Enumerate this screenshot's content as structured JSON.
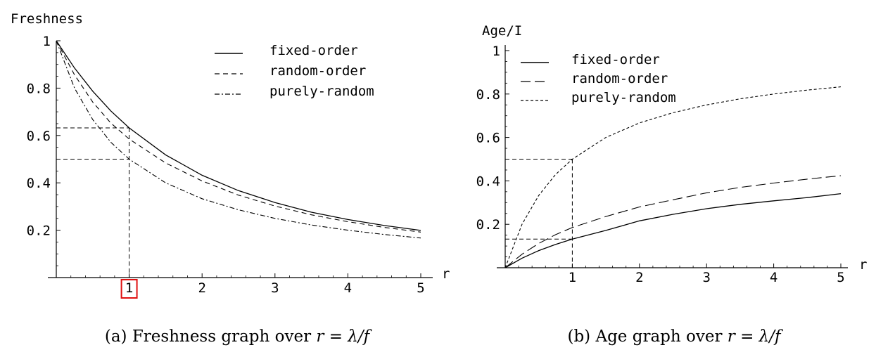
{
  "chart_data": [
    {
      "id": "freshness",
      "type": "line",
      "ylabel": "Freshness",
      "xlabel": "r",
      "caption": {
        "prefix": "(a) Freshness graph over ",
        "math": "r = λ/f"
      },
      "xlim": [
        0,
        5
      ],
      "ylim": [
        0,
        1
      ],
      "xticks": [
        1,
        2,
        3,
        4,
        5
      ],
      "yticks": [
        0.2,
        0.4,
        0.6,
        0.8,
        1
      ],
      "ytick_labels": [
        "0.2",
        "0.4",
        "0.6",
        "0.8",
        "1"
      ],
      "highlighted_xtick": 1,
      "legend_position": "top-right",
      "series": [
        {
          "name": "fixed-order",
          "dash": "solid",
          "x": [
            0,
            0.25,
            0.5,
            0.75,
            1,
            1.5,
            2,
            2.5,
            3,
            3.5,
            4,
            4.5,
            5
          ],
          "y": [
            1,
            0.885,
            0.787,
            0.703,
            0.632,
            0.518,
            0.432,
            0.367,
            0.317,
            0.276,
            0.245,
            0.22,
            0.199
          ]
        },
        {
          "name": "random-order",
          "dash": "dashed",
          "x": [
            0,
            0.25,
            0.5,
            0.75,
            1,
            1.5,
            2,
            2.5,
            3,
            3.5,
            4,
            4.5,
            5
          ],
          "y": [
            1,
            0.856,
            0.741,
            0.652,
            0.585,
            0.484,
            0.408,
            0.348,
            0.302,
            0.265,
            0.236,
            0.212,
            0.192
          ]
        },
        {
          "name": "purely-random",
          "dash": "dash-dot",
          "x": [
            0,
            0.25,
            0.5,
            0.75,
            1,
            1.5,
            2,
            2.5,
            3,
            3.5,
            4,
            4.5,
            5
          ],
          "y": [
            1,
            0.8,
            0.667,
            0.571,
            0.5,
            0.4,
            0.333,
            0.286,
            0.25,
            0.222,
            0.2,
            0.182,
            0.167
          ]
        }
      ],
      "reference_lines": {
        "x": 1,
        "y": [
          0.632,
          0.5
        ]
      }
    },
    {
      "id": "age",
      "type": "line",
      "ylabel": "Age/I",
      "xlabel": "r",
      "caption": {
        "prefix": "(b) Age graph over ",
        "math": "r = λ/f"
      },
      "xlim": [
        0,
        5
      ],
      "ylim": [
        0,
        1
      ],
      "xticks": [
        1,
        2,
        3,
        4,
        5
      ],
      "yticks": [
        0.2,
        0.4,
        0.6,
        0.8,
        1
      ],
      "ytick_labels": [
        "0.2",
        "0.4",
        "0.6",
        "0.8",
        "1"
      ],
      "legend_position": "top-left",
      "series": [
        {
          "name": "fixed-order",
          "dash": "solid",
          "x": [
            0,
            0.25,
            0.5,
            0.75,
            1,
            1.5,
            2,
            2.5,
            3,
            3.5,
            4,
            4.5,
            5
          ],
          "y": [
            0,
            0.044,
            0.079,
            0.107,
            0.132,
            0.172,
            0.216,
            0.246,
            0.272,
            0.292,
            0.308,
            0.323,
            0.341
          ]
        },
        {
          "name": "random-order",
          "dash": "long-dash",
          "x": [
            0,
            0.25,
            0.5,
            0.75,
            1,
            1.5,
            2,
            2.5,
            3,
            3.5,
            4,
            4.5,
            5
          ],
          "y": [
            0,
            0.062,
            0.112,
            0.152,
            0.185,
            0.236,
            0.28,
            0.313,
            0.345,
            0.37,
            0.39,
            0.408,
            0.424
          ]
        },
        {
          "name": "purely-random",
          "dash": "short-dash",
          "x": [
            0,
            0.25,
            0.5,
            0.75,
            1,
            1.5,
            2,
            2.5,
            3,
            3.5,
            4,
            4.5,
            5
          ],
          "y": [
            0,
            0.2,
            0.333,
            0.429,
            0.5,
            0.6,
            0.667,
            0.714,
            0.75,
            0.778,
            0.8,
            0.818,
            0.833
          ]
        }
      ],
      "reference_lines": {
        "x": 1,
        "y": [
          0.5,
          0.132
        ]
      }
    }
  ]
}
